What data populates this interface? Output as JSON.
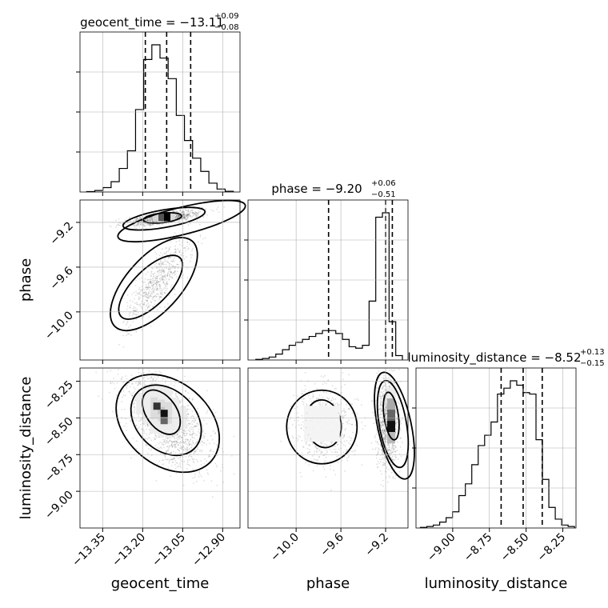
{
  "chart_data": {
    "type": "corner",
    "parameters": [
      "geocent_time",
      "phase",
      "luminosity_distance"
    ],
    "axis_labels": {
      "geocent_time": "geocent_time",
      "phase": "phase",
      "luminosity_distance": "luminosity_distance"
    },
    "titles": [
      {
        "param": "geocent_time",
        "text": "geocent_time = −13.11",
        "upper": "+0.09",
        "lower": "−0.08"
      },
      {
        "param": "phase",
        "text": "phase = −9.20",
        "upper": "+0.06",
        "lower": "−0.51"
      },
      {
        "param": "luminosity_distance",
        "text": "luminosity_distance = −8.52",
        "upper": "+0.13",
        "lower": "−0.15"
      }
    ],
    "ranges": {
      "geocent_time": [
        -13.435,
        -12.835
      ],
      "phase": [
        -10.43,
        -9.0
      ],
      "luminosity_distance": [
        -9.25,
        -8.16
      ]
    },
    "ticks": {
      "geocent_time": {
        "values": [
          -13.35,
          -13.2,
          -13.05,
          -12.9
        ],
        "labels": [
          "−13.35",
          "−13.20",
          "−13.05",
          "−12.90"
        ]
      },
      "phase": {
        "values": [
          -10.0,
          -9.6,
          -9.2
        ],
        "labels": [
          "−10.0",
          "−9.6",
          "−9.2"
        ]
      },
      "luminosity_distance": {
        "values": [
          -9.0,
          -8.75,
          -8.5,
          -8.25
        ],
        "labels": [
          "−9.00",
          "−8.75",
          "−8.50",
          "−8.25"
        ]
      }
    },
    "quantiles": {
      "geocent_time": [
        -13.19,
        -13.11,
        -13.02
      ],
      "phase": [
        -9.71,
        -9.2,
        -9.14
      ],
      "luminosity_distance": [
        -8.67,
        -8.52,
        -8.39
      ]
    },
    "histograms": {
      "geocent_time": [
        0.003,
        0.01,
        0.03,
        0.07,
        0.16,
        0.28,
        0.56,
        0.9,
        1.0,
        0.91,
        0.77,
        0.52,
        0.35,
        0.23,
        0.14,
        0.06,
        0.02,
        0.005
      ],
      "phase": [
        0.004,
        0.01,
        0.02,
        0.04,
        0.07,
        0.1,
        0.12,
        0.14,
        0.16,
        0.18,
        0.2,
        0.2,
        0.18,
        0.14,
        0.09,
        0.08,
        0.1,
        0.4,
        0.97,
        1.0,
        0.26,
        0.03
      ],
      "luminosity_distance": [
        0.004,
        0.01,
        0.02,
        0.04,
        0.07,
        0.11,
        0.22,
        0.3,
        0.43,
        0.56,
        0.63,
        0.72,
        0.91,
        0.95,
        1.0,
        0.97,
        0.92,
        0.91,
        0.6,
        0.33,
        0.14,
        0.06,
        0.02,
        0.01
      ]
    },
    "histogram_edges": {
      "geocent_time": [
        -13.41,
        -12.86
      ],
      "phase": [
        -10.36,
        -9.05
      ],
      "luminosity_distance": [
        -9.22,
        -8.17
      ]
    },
    "joint_modes": [
      {
        "x": "geocent_time",
        "y": "phase",
        "peak": [
          -13.12,
          -9.16
        ],
        "secondary_peak": [
          -13.16,
          -9.82
        ]
      },
      {
        "x": "geocent_time",
        "y": "luminosity_distance",
        "peak": [
          -13.13,
          -8.44
        ]
      },
      {
        "x": "phase",
        "y": "luminosity_distance",
        "peak": [
          -9.16,
          -8.52
        ],
        "secondary_peak": [
          -9.78,
          -8.54
        ]
      }
    ],
    "grid": true
  }
}
